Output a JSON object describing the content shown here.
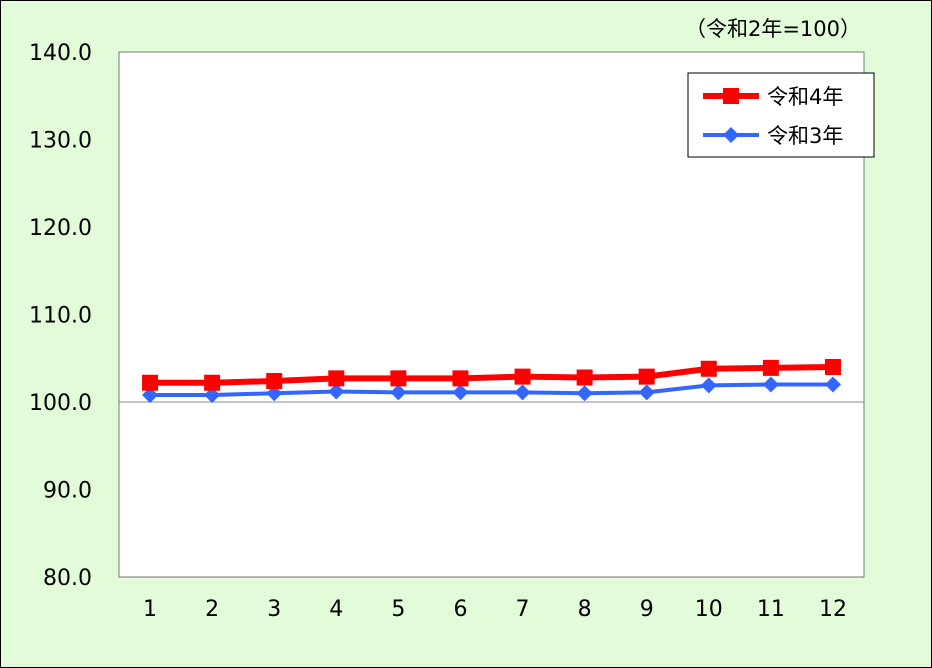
{
  "chart_data": {
    "type": "line",
    "title": "",
    "unit_note": "（令和2年=100）",
    "xlabel": "",
    "ylabel": "",
    "categories": [
      "1",
      "2",
      "3",
      "4",
      "5",
      "6",
      "7",
      "8",
      "9",
      "10",
      "11",
      "12"
    ],
    "ylim": [
      80,
      140
    ],
    "yticks": [
      "80.0",
      "90.0",
      "100.0",
      "110.0",
      "120.0",
      "130.0",
      "140.0"
    ],
    "reference_line": 100,
    "grid": false,
    "legend_position": "top-right",
    "series": [
      {
        "name": "令和4年",
        "color": "#ff0000",
        "marker": "square",
        "values": [
          102.2,
          102.2,
          102.4,
          102.7,
          102.7,
          102.7,
          102.9,
          102.8,
          102.9,
          103.8,
          103.9,
          104.0
        ]
      },
      {
        "name": "令和3年",
        "color": "#3366ff",
        "marker": "diamond",
        "values": [
          100.8,
          100.8,
          101.0,
          101.2,
          101.1,
          101.1,
          101.1,
          101.0,
          101.1,
          101.9,
          102.0,
          102.0
        ]
      }
    ]
  }
}
